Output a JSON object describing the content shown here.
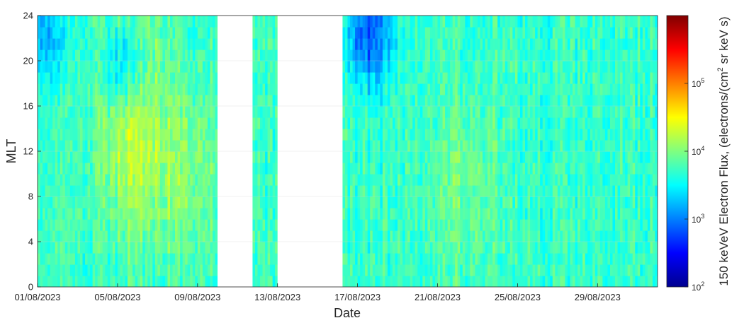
{
  "chart_data": {
    "type": "heatmap",
    "xlabel": "Date",
    "ylabel": "MLT",
    "colorbar_label": "150 keVeV Electron Flux, (electrons/(cm",
    "colorbar_label_sup": "2",
    "colorbar_label_end": " sr keV s)",
    "colormap": "jet",
    "colorbar_scale": "log",
    "colorbar_range": [
      100,
      1000000
    ],
    "colorbar_ticks": [
      {
        "value": 100,
        "base": "10",
        "exp": "2"
      },
      {
        "value": 1000,
        "base": "10",
        "exp": "3"
      },
      {
        "value": 10000,
        "base": "10",
        "exp": "4"
      },
      {
        "value": 100000,
        "base": "10",
        "exp": "5"
      }
    ],
    "x_range": [
      "2023-08-01",
      "2023-09-01"
    ],
    "x_ticks": [
      "01/08/2023",
      "05/08/2023",
      "09/08/2023",
      "13/08/2023",
      "17/08/2023",
      "21/08/2023",
      "25/08/2023",
      "29/08/2023"
    ],
    "x_tick_dates": [
      "2023-08-01",
      "2023-08-05",
      "2023-08-09",
      "2023-08-13",
      "2023-08-17",
      "2023-08-21",
      "2023-08-25",
      "2023-08-29"
    ],
    "y_range": [
      0,
      24
    ],
    "y_ticks": [
      "0",
      "4",
      "8",
      "12",
      "16",
      "20",
      "24"
    ],
    "y_tick_values": [
      0,
      4,
      8,
      12,
      16,
      20,
      24
    ],
    "grid": true,
    "data_gaps": [
      {
        "start": "2023-08-10",
        "end": "2023-08-11 18:00"
      },
      {
        "start": "2023-08-13",
        "end": "2023-08-16 06:00"
      }
    ],
    "typical_flux": 5000,
    "enhancements": [
      {
        "center": "2023-08-05 18:00",
        "mlt": 12,
        "peak_flux": 15000
      },
      {
        "center": "2023-08-05 12:00",
        "mlt": 22,
        "peak_flux": 12000
      },
      {
        "center": "2023-08-08 12:00",
        "mlt": 10,
        "peak_flux": 10000
      },
      {
        "center": "2023-08-22 06:00",
        "mlt": 9,
        "peak_flux": 9000
      }
    ],
    "depletions": [
      {
        "center": "2023-08-17 12:00",
        "mlt": 22,
        "min_flux": 700
      },
      {
        "center": "2023-08-05 06:00",
        "mlt": 20,
        "min_flux": 900
      },
      {
        "center": "2023-08-01 12:00",
        "mlt": 22,
        "min_flux": 1500
      }
    ]
  }
}
